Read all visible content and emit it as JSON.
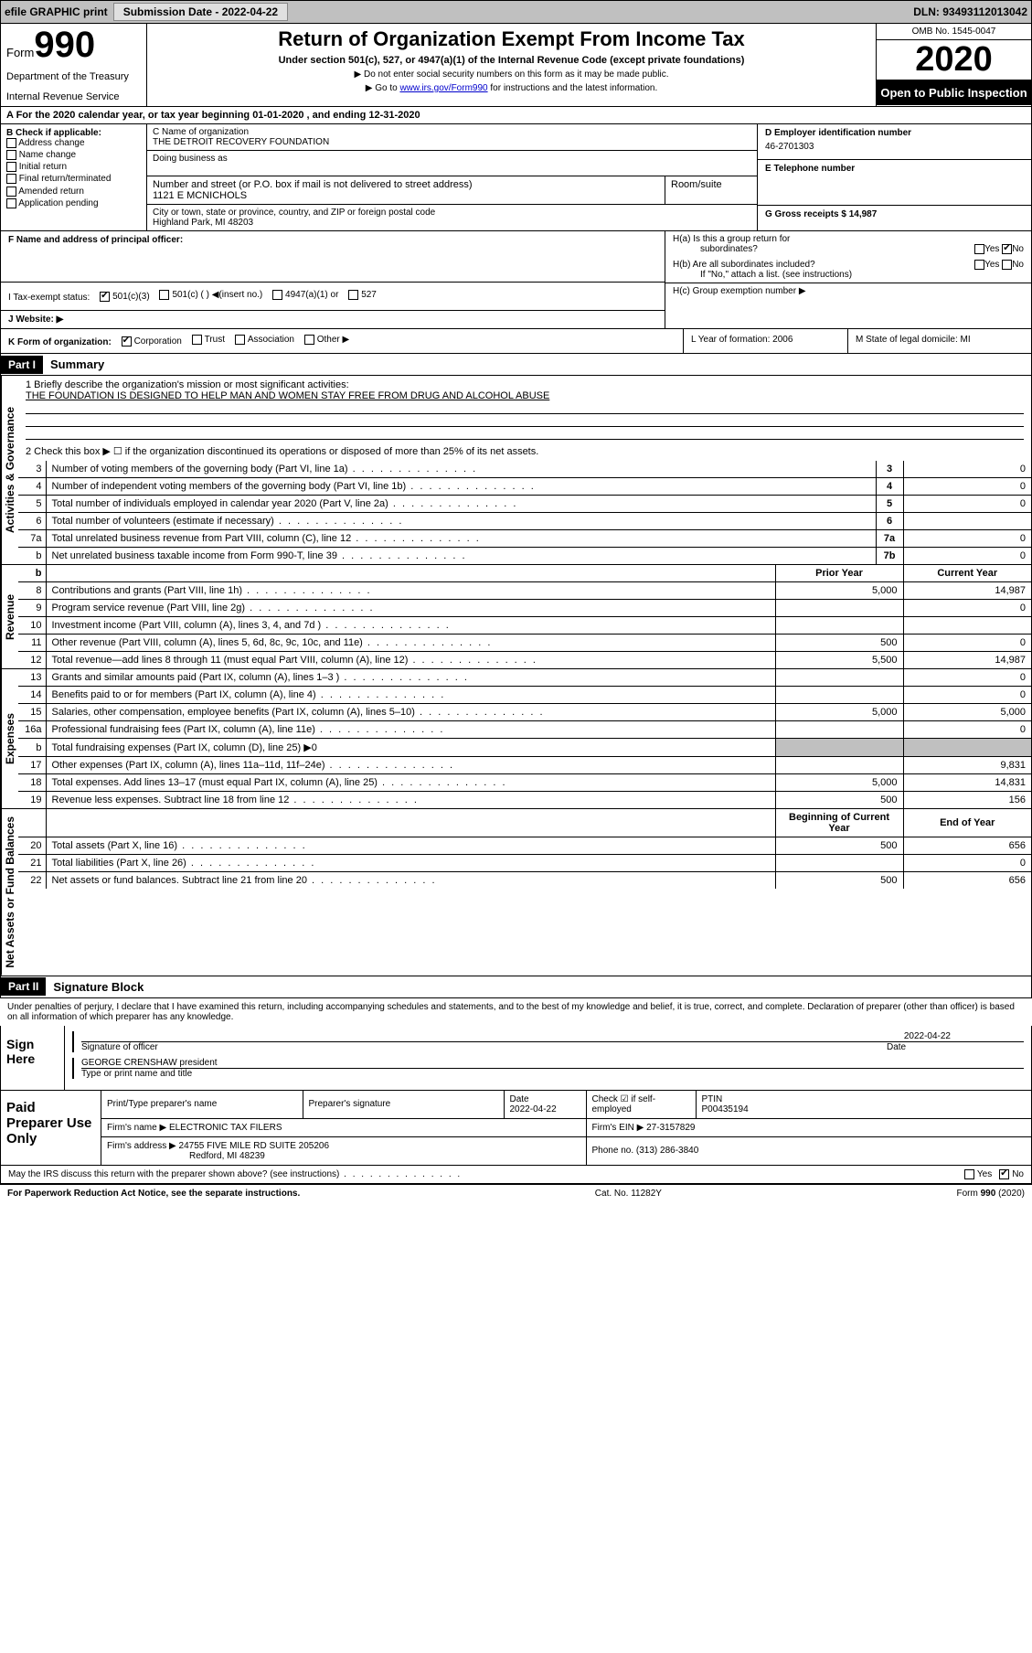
{
  "topbar": {
    "efile": "efile GRAPHIC print",
    "submission_label": "Submission Date - 2022-04-22",
    "dln": "DLN: 93493112013042"
  },
  "header": {
    "form_word": "Form",
    "form_no": "990",
    "dept": "Department of the Treasury",
    "irs": "Internal Revenue Service",
    "title": "Return of Organization Exempt From Income Tax",
    "sub": "Under section 501(c), 527, or 4947(a)(1) of the Internal Revenue Code (except private foundations)",
    "note1": "Do not enter social security numbers on this form as it may be made public.",
    "note2_pre": "Go to ",
    "note2_link": "www.irs.gov/Form990",
    "note2_post": " for instructions and the latest information.",
    "omb": "OMB No. 1545-0047",
    "year": "2020",
    "open": "Open to Public Inspection"
  },
  "row_a": "A For the 2020 calendar year, or tax year beginning 01-01-2020   , and ending 12-31-2020",
  "col_b": {
    "title": "B Check if applicable:",
    "opts": [
      "Address change",
      "Name change",
      "Initial return",
      "Final return/terminated",
      "Amended return",
      "Application pending"
    ]
  },
  "col_c": {
    "name_lbl": "C Name of organization",
    "name": "THE DETROIT RECOVERY FOUNDATION",
    "dba_lbl": "Doing business as",
    "street_lbl": "Number and street (or P.O. box if mail is not delivered to street address)",
    "street": "1121 E MCNICHOLS",
    "room_lbl": "Room/suite",
    "city_lbl": "City or town, state or province, country, and ZIP or foreign postal code",
    "city": "Highland Park, MI  48203"
  },
  "col_d": {
    "ein_lbl": "D Employer identification number",
    "ein": "46-2701303",
    "tel_lbl": "E Telephone number",
    "gross_lbl": "G Gross receipts $ 14,987"
  },
  "col_f": {
    "officer_lbl": "F  Name and address of principal officer:",
    "tax_lbl": "I  Tax-exempt status:",
    "web_lbl": "J  Website: ▶"
  },
  "tax_opts": {
    "c3": "501(c)(3)",
    "c": "501(c) ( ) ◀(insert no.)",
    "a1": "4947(a)(1) or",
    "s527": "527"
  },
  "col_h": {
    "ha": "H(a)  Is this a group return for",
    "ha2": "subordinates?",
    "hb": "H(b)  Are all subordinates included?",
    "hb2": "If \"No,\" attach a list. (see instructions)",
    "hc": "H(c)  Group exemption number ▶",
    "yes": "Yes",
    "no": "No"
  },
  "row_k": {
    "k": "K Form of organization:",
    "corp": "Corporation",
    "trust": "Trust",
    "assoc": "Association",
    "other": "Other ▶",
    "l": "L Year of formation: 2006",
    "m": "M State of legal domicile: MI"
  },
  "part1": {
    "hd": "Part I",
    "title": "Summary",
    "q1": "1   Briefly describe the organization's mission or most significant activities:",
    "mission": "THE FOUNDATION IS DESIGNED TO HELP MAN AND WOMEN STAY FREE FROM DRUG AND ALCOHOL ABUSE",
    "q2": "2   Check this box ▶ ☐  if the organization discontinued its operations or disposed of more than 25% of its net assets."
  },
  "tabs": {
    "gov": "Activities & Governance",
    "rev": "Revenue",
    "exp": "Expenses",
    "net": "Net Assets or Fund Balances"
  },
  "gov_lines": [
    {
      "n": "3",
      "lbl": "Number of voting members of the governing body (Part VI, line 1a)",
      "box": "3",
      "val": "0"
    },
    {
      "n": "4",
      "lbl": "Number of independent voting members of the governing body (Part VI, line 1b)",
      "box": "4",
      "val": "0"
    },
    {
      "n": "5",
      "lbl": "Total number of individuals employed in calendar year 2020 (Part V, line 2a)",
      "box": "5",
      "val": "0"
    },
    {
      "n": "6",
      "lbl": "Total number of volunteers (estimate if necessary)",
      "box": "6",
      "val": ""
    },
    {
      "n": "7a",
      "lbl": "Total unrelated business revenue from Part VIII, column (C), line 12",
      "box": "7a",
      "val": "0"
    },
    {
      "n": "b",
      "lbl": "Net unrelated business taxable income from Form 990-T, line 39",
      "box": "7b",
      "val": "0"
    }
  ],
  "rev_hdr": {
    "prior": "Prior Year",
    "curr": "Current Year"
  },
  "rev_lines": [
    {
      "n": "8",
      "lbl": "Contributions and grants (Part VIII, line 1h)",
      "p": "5,000",
      "c": "14,987"
    },
    {
      "n": "9",
      "lbl": "Program service revenue (Part VIII, line 2g)",
      "p": "",
      "c": "0"
    },
    {
      "n": "10",
      "lbl": "Investment income (Part VIII, column (A), lines 3, 4, and 7d )",
      "p": "",
      "c": ""
    },
    {
      "n": "11",
      "lbl": "Other revenue (Part VIII, column (A), lines 5, 6d, 8c, 9c, 10c, and 11e)",
      "p": "500",
      "c": "0"
    },
    {
      "n": "12",
      "lbl": "Total revenue—add lines 8 through 11 (must equal Part VIII, column (A), line 12)",
      "p": "5,500",
      "c": "14,987"
    }
  ],
  "exp_lines": [
    {
      "n": "13",
      "lbl": "Grants and similar amounts paid (Part IX, column (A), lines 1–3 )",
      "p": "",
      "c": "0"
    },
    {
      "n": "14",
      "lbl": "Benefits paid to or for members (Part IX, column (A), line 4)",
      "p": "",
      "c": "0"
    },
    {
      "n": "15",
      "lbl": "Salaries, other compensation, employee benefits (Part IX, column (A), lines 5–10)",
      "p": "5,000",
      "c": "5,000"
    },
    {
      "n": "16a",
      "lbl": "Professional fundraising fees (Part IX, column (A), line 11e)",
      "p": "",
      "c": "0"
    },
    {
      "n": "b",
      "lbl": "Total fundraising expenses (Part IX, column (D), line 25) ▶0",
      "shade": true
    },
    {
      "n": "17",
      "lbl": "Other expenses (Part IX, column (A), lines 11a–11d, 11f–24e)",
      "p": "",
      "c": "9,831"
    },
    {
      "n": "18",
      "lbl": "Total expenses. Add lines 13–17 (must equal Part IX, column (A), line 25)",
      "p": "5,000",
      "c": "14,831"
    },
    {
      "n": "19",
      "lbl": "Revenue less expenses. Subtract line 18 from line 12",
      "p": "500",
      "c": "156"
    }
  ],
  "net_hdr": {
    "beg": "Beginning of Current Year",
    "end": "End of Year"
  },
  "net_lines": [
    {
      "n": "20",
      "lbl": "Total assets (Part X, line 16)",
      "p": "500",
      "c": "656"
    },
    {
      "n": "21",
      "lbl": "Total liabilities (Part X, line 26)",
      "p": "",
      "c": "0"
    },
    {
      "n": "22",
      "lbl": "Net assets or fund balances. Subtract line 21 from line 20",
      "p": "500",
      "c": "656"
    }
  ],
  "part2": {
    "hd": "Part II",
    "title": "Signature Block",
    "perjury": "Under penalties of perjury, I declare that I have examined this return, including accompanying schedules and statements, and to the best of my knowledge and belief, it is true, correct, and complete. Declaration of preparer (other than officer) is based on all information of which preparer has any knowledge."
  },
  "sign": {
    "lbl": "Sign Here",
    "sig_of": "Signature of officer",
    "date": "2022-04-22",
    "date_lbl": "Date",
    "name": "GEORGE CRENSHAW  president",
    "name_lbl": "Type or print name and title"
  },
  "prep": {
    "lbl": "Paid Preparer Use Only",
    "print_lbl": "Print/Type preparer's name",
    "sig_lbl": "Preparer's signature",
    "date_lbl": "Date",
    "date": "2022-04-22",
    "check_lbl": "Check ☑ if self-employed",
    "ptin_lbl": "PTIN",
    "ptin": "P00435194",
    "firm_name_lbl": "Firm's name    ▶",
    "firm_name": "ELECTRONIC TAX FILERS",
    "firm_ein_lbl": "Firm's EIN ▶",
    "firm_ein": "27-3157829",
    "firm_addr_lbl": "Firm's address ▶",
    "firm_addr1": "24755 FIVE MILE RD SUITE 205206",
    "firm_addr2": "Redford, MI  48239",
    "phone_lbl": "Phone no.",
    "phone": "(313) 286-3840"
  },
  "discuss": {
    "q": "May the IRS discuss this return with the preparer shown above? (see instructions)",
    "yes": "Yes",
    "no": "No"
  },
  "foot": {
    "pra": "For Paperwork Reduction Act Notice, see the separate instructions.",
    "cat": "Cat. No. 11282Y",
    "form": "Form 990 (2020)"
  }
}
